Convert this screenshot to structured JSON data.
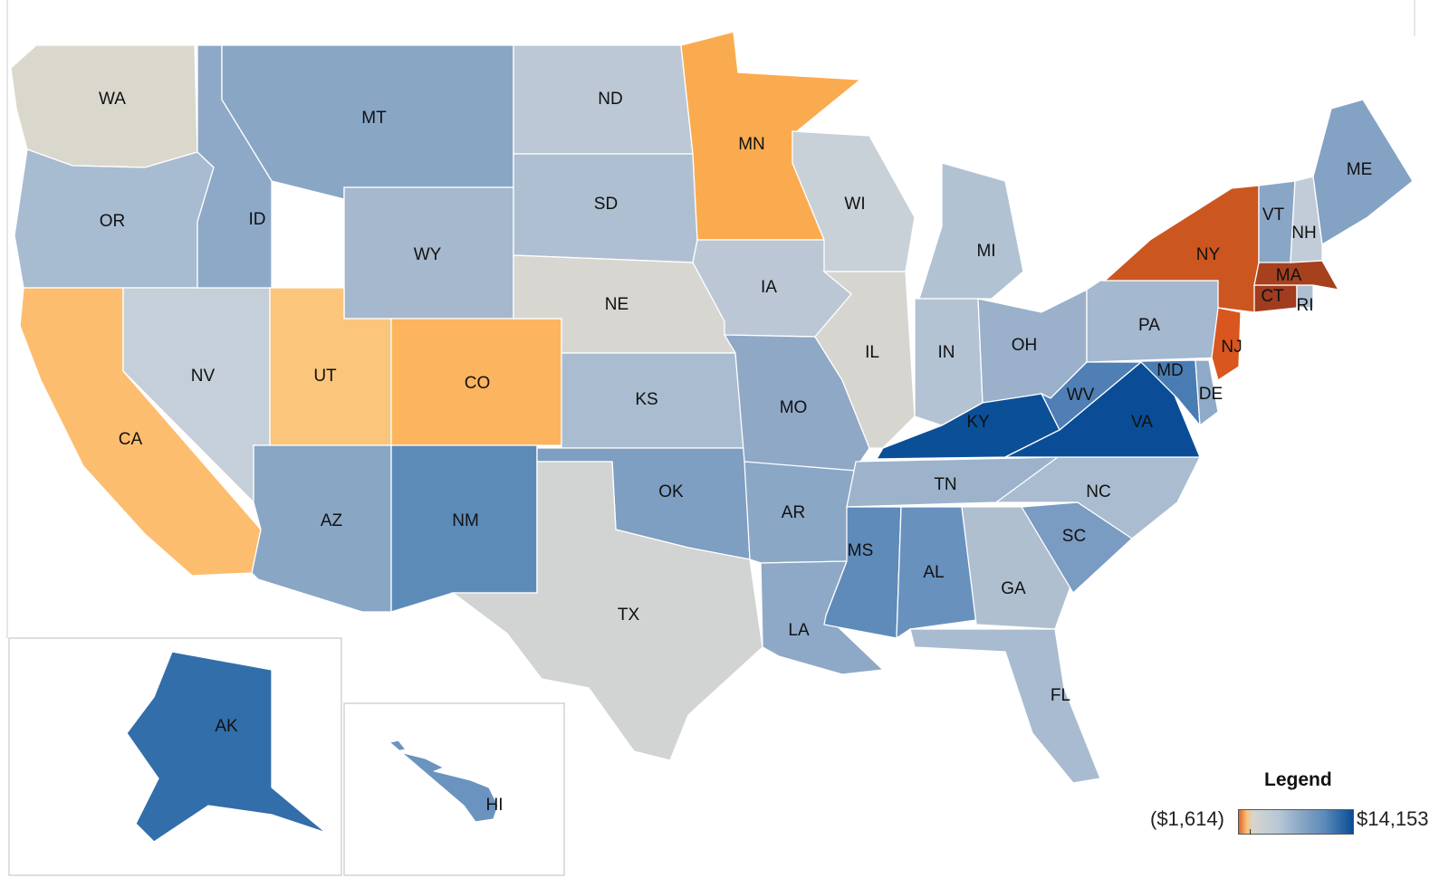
{
  "legend": {
    "title": "Legend",
    "min_label": "($1,614)",
    "max_label": "$14,153",
    "min_value": -1614,
    "max_value": 14153
  },
  "colors": {
    "neg_strong": "#e0622a",
    "neg_light": "#fbc27a",
    "neutral": "#d7d5cf",
    "pos_light": "#b7c6d6",
    "pos_mid": "#88a6c6",
    "pos_strong": "#5b8bb8",
    "pos_max": "#0a4d96",
    "border": "#ffffff"
  },
  "states": [
    {
      "abbr": "WA",
      "color": "#dad7cd"
    },
    {
      "abbr": "OR",
      "color": "#a7bbd1"
    },
    {
      "abbr": "CA",
      "color": "#fdbd6e"
    },
    {
      "abbr": "NV",
      "color": "#c5cfd9"
    },
    {
      "abbr": "ID",
      "color": "#8ea9c7"
    },
    {
      "abbr": "MT",
      "color": "#89a7c5"
    },
    {
      "abbr": "WY",
      "color": "#a5b8cd"
    },
    {
      "abbr": "UT",
      "color": "#fbc57c"
    },
    {
      "abbr": "CO",
      "color": "#fcb45e"
    },
    {
      "abbr": "AZ",
      "color": "#89a6c5"
    },
    {
      "abbr": "NM",
      "color": "#5d8bb8"
    },
    {
      "abbr": "ND",
      "color": "#bcc8d5"
    },
    {
      "abbr": "SD",
      "color": "#aebfd1"
    },
    {
      "abbr": "NE",
      "color": "#d8d6d0"
    },
    {
      "abbr": "KS",
      "color": "#aabdd0"
    },
    {
      "abbr": "OK",
      "color": "#7e9ec2"
    },
    {
      "abbr": "TX",
      "color": "#d2d3d3"
    },
    {
      "abbr": "MN",
      "color": "#fbab4f"
    },
    {
      "abbr": "IA",
      "color": "#bbc7d4"
    },
    {
      "abbr": "MO",
      "color": "#8fa8c6"
    },
    {
      "abbr": "AR",
      "color": "#8aa7c5"
    },
    {
      "abbr": "LA",
      "color": "#8ea9c7"
    },
    {
      "abbr": "WI",
      "color": "#c8d0d8"
    },
    {
      "abbr": "IL",
      "color": "#d6d5d0"
    },
    {
      "abbr": "MI",
      "color": "#b1c2d3"
    },
    {
      "abbr": "IN",
      "color": "#b3c3d3"
    },
    {
      "abbr": "OH",
      "color": "#9ab0cb"
    },
    {
      "abbr": "KY",
      "color": "#0b4f97"
    },
    {
      "abbr": "TN",
      "color": "#9db3cc"
    },
    {
      "abbr": "MS",
      "color": "#5f8bba"
    },
    {
      "abbr": "AL",
      "color": "#6891bd"
    },
    {
      "abbr": "GA",
      "color": "#b0bfcf"
    },
    {
      "abbr": "FL",
      "color": "#a8bbd0"
    },
    {
      "abbr": "SC",
      "color": "#7a9bc2"
    },
    {
      "abbr": "NC",
      "color": "#a9bcd0"
    },
    {
      "abbr": "VA",
      "color": "#0a4d96"
    },
    {
      "abbr": "WV",
      "color": "#4f7fb5"
    },
    {
      "abbr": "MD",
      "color": "#4a7cb4"
    },
    {
      "abbr": "DE",
      "color": "#8eaac8"
    },
    {
      "abbr": "PA",
      "color": "#a4b8cf"
    },
    {
      "abbr": "NJ",
      "color": "#d9561f"
    },
    {
      "abbr": "NY",
      "color": "#cc5620"
    },
    {
      "abbr": "CT",
      "color": "#a13c1f"
    },
    {
      "abbr": "RI",
      "color": "#aebfd1"
    },
    {
      "abbr": "MA",
      "color": "#a7411d"
    },
    {
      "abbr": "VT",
      "color": "#8aa6c6"
    },
    {
      "abbr": "NH",
      "color": "#c2ccd8"
    },
    {
      "abbr": "ME",
      "color": "#84a2c4"
    },
    {
      "abbr": "AK",
      "color": "#326ea9"
    },
    {
      "abbr": "HI",
      "color": "#6b93bf"
    }
  ]
}
